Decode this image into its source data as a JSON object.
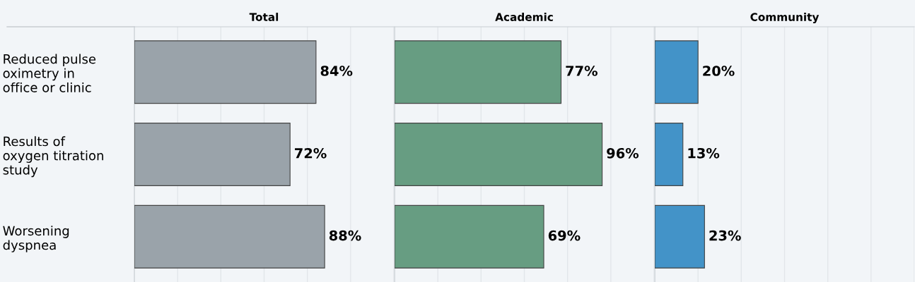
{
  "chart_data": [
    {
      "type": "bar",
      "orientation": "horizontal",
      "title": "Total",
      "categories": [
        "Reduced pulse\noximetry in\noffice or clinic",
        "Results of\noxygen titration\nstudy",
        "Worsening\ndyspnea"
      ],
      "values": [
        84,
        72,
        88
      ],
      "value_labels": [
        "84%",
        "72%",
        "88%"
      ],
      "color": "#9aa3aa",
      "xlim": [
        0,
        120
      ],
      "xticks": [
        {
          "value": 0,
          "label": null
        },
        {
          "value": 20,
          "label": null
        },
        {
          "value": 40,
          "label": null
        },
        {
          "value": 60,
          "label": null
        },
        {
          "value": 80,
          "label": null
        },
        {
          "value": 100,
          "label": null
        },
        {
          "value": 120,
          "label": null
        }
      ],
      "grid": "x",
      "tick_labels": "y"
    },
    {
      "type": "bar",
      "orientation": "horizontal",
      "title": "Academic",
      "categories": [
        null,
        null,
        null
      ],
      "values": [
        77,
        96,
        69
      ],
      "value_labels": [
        "77%",
        "96%",
        "69%"
      ],
      "color": "#679d82",
      "xlim": [
        0,
        120
      ],
      "xticks": [
        {
          "value": 0,
          "label": null
        },
        {
          "value": 20,
          "label": null
        },
        {
          "value": 40,
          "label": null
        },
        {
          "value": 60,
          "label": null
        },
        {
          "value": 80,
          "label": null
        },
        {
          "value": 100,
          "label": null
        },
        {
          "value": 120,
          "label": null
        }
      ],
      "grid": "x",
      "tick_labels": false
    },
    {
      "type": "bar",
      "orientation": "horizontal",
      "title": "Community",
      "categories": [
        null,
        null,
        null
      ],
      "values": [
        20,
        13,
        23
      ],
      "value_labels": [
        "20%",
        "13%",
        "23%"
      ],
      "color": "#4393c8",
      "xlim": [
        0,
        120
      ],
      "xticks": [
        {
          "value": 0,
          "label": null
        },
        {
          "value": 20,
          "label": null
        },
        {
          "value": 40,
          "label": null
        },
        {
          "value": 60,
          "label": null
        },
        {
          "value": 80,
          "label": null
        },
        {
          "value": 100,
          "label": null
        },
        {
          "value": 120,
          "label": null
        }
      ],
      "grid": "x",
      "tick_labels": false
    }
  ]
}
